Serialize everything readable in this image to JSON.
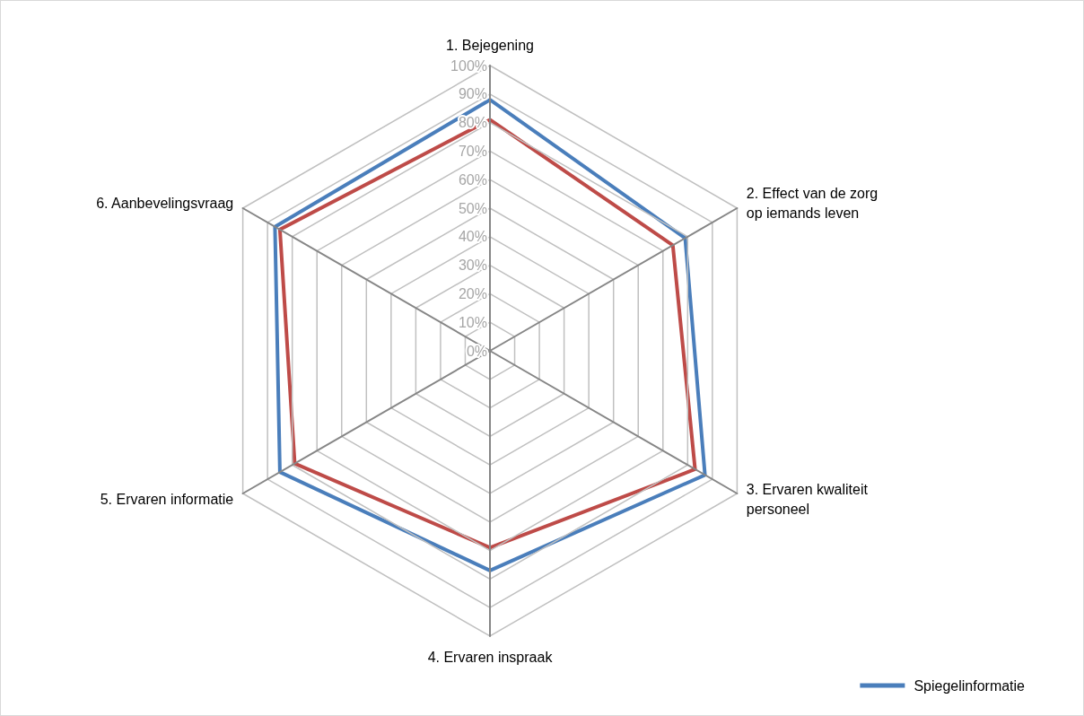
{
  "chart_data": {
    "type": "radar",
    "categories": [
      "1. Bejegening",
      "2. Effect van de zorg op iemands leven",
      "3. Ervaren kwaliteit personeel",
      "4. Ervaren inspraak",
      "5. Ervaren informatie",
      "6. Aanbevelingsvraag"
    ],
    "series": [
      {
        "name": "Spiegelinformatie",
        "color": "#4a7ebb",
        "values": [
          88,
          79,
          87,
          77,
          85,
          87
        ]
      },
      {
        "color": "#be4b48",
        "values": [
          81,
          74,
          83,
          69,
          79,
          85
        ]
      }
    ],
    "ylim": [
      0,
      100
    ],
    "yticks": [
      {
        "value": 0,
        "label": "0%"
      },
      {
        "value": 10,
        "label": "10%"
      },
      {
        "value": 20,
        "label": "20%"
      },
      {
        "value": 30,
        "label": "30%"
      },
      {
        "value": 40,
        "label": "40%"
      },
      {
        "value": 50,
        "label": "50%"
      },
      {
        "value": 60,
        "label": "60%"
      },
      {
        "value": 70,
        "label": "70%"
      },
      {
        "value": 80,
        "label": "80%"
      },
      {
        "value": 90,
        "label": "90%"
      },
      {
        "value": 100,
        "label": "100%"
      }
    ],
    "grid": true,
    "legend": "bottom right",
    "marker": "none",
    "line_style": "solid"
  }
}
